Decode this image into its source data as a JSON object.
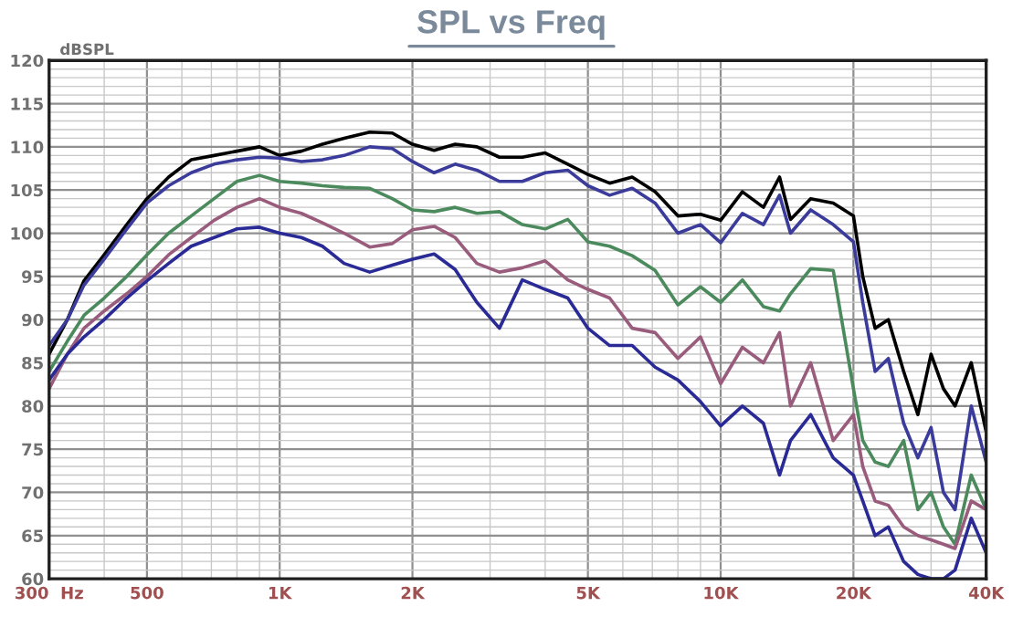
{
  "chart_data": {
    "type": "line",
    "title": "SPL vs Freq",
    "ylabel": "dBSPL",
    "x": [
      300,
      330,
      360,
      400,
      450,
      500,
      560,
      630,
      710,
      800,
      900,
      1000,
      1120,
      1250,
      1400,
      1600,
      1800,
      2000,
      2240,
      2500,
      2800,
      3150,
      3550,
      4000,
      4500,
      5000,
      5600,
      6300,
      7100,
      8000,
      9000,
      10000,
      11200,
      12500,
      13600,
      14400,
      16000,
      18000,
      20000,
      21000,
      22400,
      24000,
      26000,
      28000,
      30000,
      32000,
      34000,
      37000,
      40000
    ],
    "series": [
      {
        "color": "#000000",
        "values": [
          86,
          90,
          94.5,
          97.5,
          101,
          104,
          106.5,
          108.5,
          109,
          109.5,
          110,
          109,
          109.5,
          110.3,
          111,
          111.7,
          111.6,
          110.3,
          109.6,
          110.3,
          110,
          108.8,
          108.8,
          109.3,
          108,
          106.8,
          105.8,
          106.5,
          104.8,
          102,
          102.2,
          101.5,
          104.8,
          103,
          106.5,
          101.6,
          104,
          103.5,
          102,
          95,
          89,
          90,
          84,
          79,
          86,
          82,
          80,
          85,
          77
        ]
      },
      {
        "color": "#3b3b9c",
        "values": [
          87,
          90,
          94,
          97,
          100.5,
          103.5,
          105.5,
          107,
          108,
          108.5,
          108.8,
          108.7,
          108.3,
          108.5,
          109,
          110,
          109.8,
          108.3,
          107,
          108,
          107.3,
          106,
          106,
          107,
          107.3,
          105.5,
          104.4,
          105.2,
          103.5,
          100,
          101,
          98.9,
          102.3,
          101,
          104.4,
          100,
          102.7,
          101,
          99,
          92,
          84,
          85.5,
          78,
          74,
          77.5,
          70,
          68,
          80,
          73.5
        ]
      },
      {
        "color": "#4b8a5c",
        "values": [
          84,
          87.5,
          90.5,
          92.5,
          95,
          97.5,
          100,
          102,
          104,
          106,
          106.7,
          106,
          105.8,
          105.5,
          105.3,
          105.2,
          104,
          102.7,
          102.5,
          103,
          102.3,
          102.5,
          101,
          100.5,
          101.6,
          99,
          98.5,
          97.4,
          95.7,
          91.7,
          93.8,
          92,
          94.6,
          91.5,
          91,
          93,
          95.9,
          95.7,
          82,
          76,
          73.5,
          73,
          76,
          68,
          70,
          66,
          64,
          72,
          68
        ]
      },
      {
        "color": "#9a5c7c",
        "values": [
          82,
          86,
          89,
          91,
          93,
          95,
          97.5,
          99.5,
          101.5,
          103,
          104,
          103,
          102.3,
          101.2,
          100,
          98.4,
          98.8,
          100.4,
          100.8,
          99.5,
          96.5,
          95.5,
          96,
          96.8,
          94.6,
          93.5,
          92.5,
          89,
          88.5,
          85.5,
          88,
          82.6,
          86.8,
          85,
          88.5,
          80,
          85,
          76,
          79,
          73,
          69,
          68.5,
          66,
          65,
          64.5,
          64,
          63.5,
          69,
          68
        ]
      },
      {
        "color": "#2a2a96",
        "values": [
          83,
          86,
          88,
          90,
          92.5,
          94.5,
          96.5,
          98.5,
          99.5,
          100.5,
          100.7,
          100,
          99.5,
          98.5,
          96.5,
          95.5,
          96.3,
          97,
          97.6,
          95.8,
          92,
          89,
          94.6,
          93.5,
          92.5,
          89,
          87,
          87,
          84.5,
          83,
          80.5,
          77.7,
          80,
          78,
          72,
          76,
          79,
          74,
          72,
          69,
          65,
          66,
          62,
          60.5,
          60,
          60,
          61,
          67,
          63
        ]
      }
    ],
    "log": "x",
    "xlim": [
      300,
      40000
    ],
    "xticks": [
      {
        "value": 300,
        "label": "300  Hz"
      },
      500,
      {
        "value": 1000,
        "label": "1K"
      },
      {
        "value": 2000,
        "label": "2K"
      },
      {
        "value": 5000,
        "label": "5K"
      },
      {
        "value": 10000,
        "label": "10K"
      },
      {
        "value": 20000,
        "label": "20K"
      },
      {
        "value": 40000,
        "label": "40K"
      }
    ],
    "ylim": [
      60,
      120
    ],
    "yticks": [
      60,
      65,
      70,
      75,
      80,
      85,
      90,
      95,
      100,
      105,
      110,
      115,
      120
    ],
    "grid": true,
    "marker": "none",
    "line_style": "solid"
  }
}
